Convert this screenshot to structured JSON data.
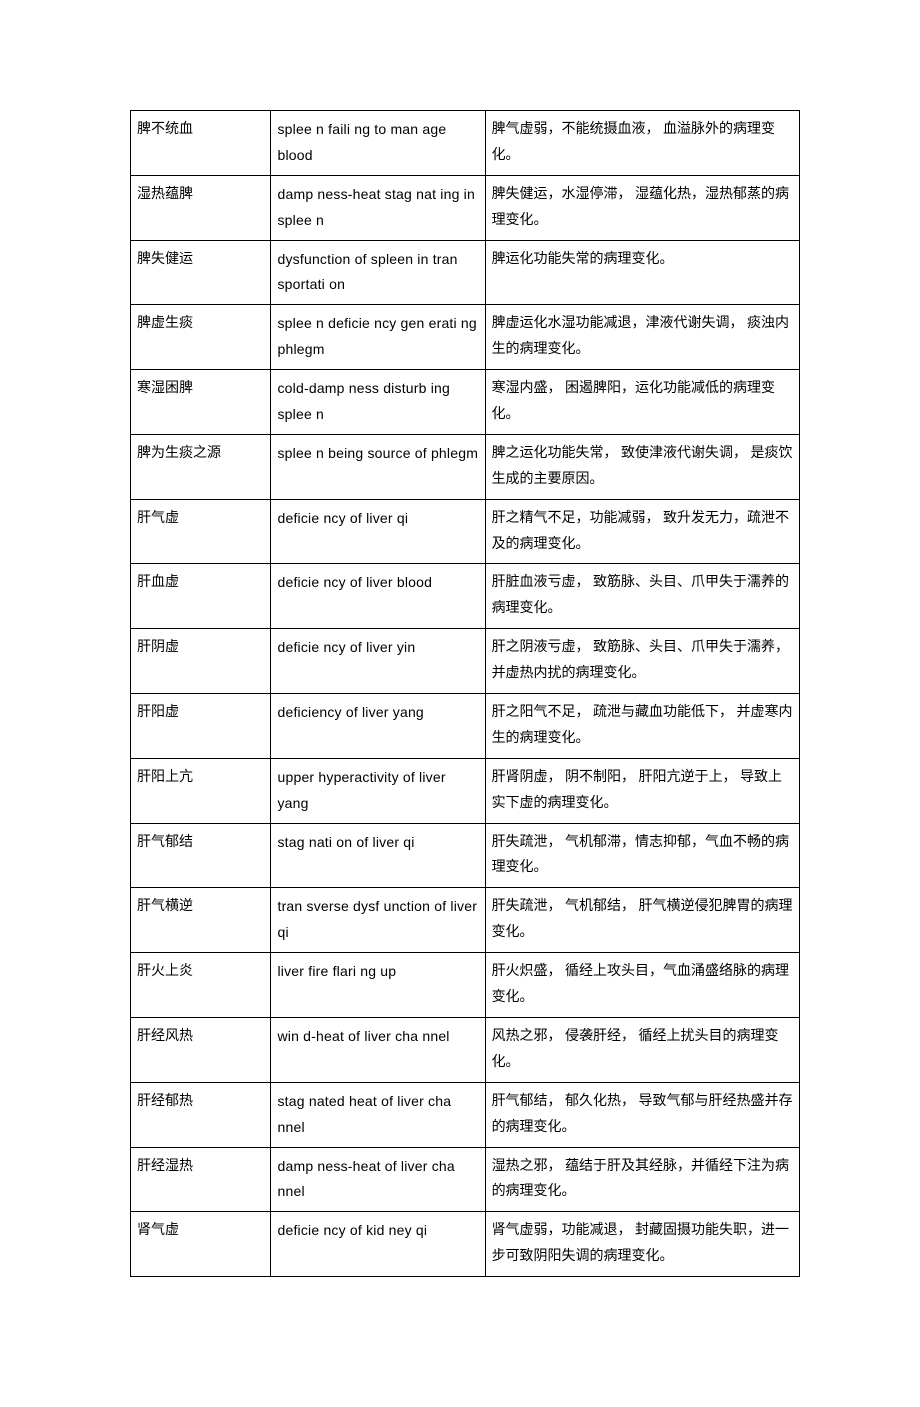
{
  "table": {
    "columns": [
      "term_cn",
      "term_en",
      "definition_cn"
    ],
    "col_widths_pct": [
      21,
      32,
      47
    ],
    "border_color": "#000000",
    "background_color": "#ffffff",
    "text_color": "#000000",
    "font_size_pt": 10.5,
    "line_height": 1.85,
    "rows": [
      {
        "term_cn": "脾不统血",
        "term_en": "splee n faili ng to man age blood",
        "definition_cn": "脾气虚弱，不能统摄血液， 血溢脉外的病理变化。"
      },
      {
        "term_cn": "湿热蕴脾",
        "term_en": "damp ness-heat stag nat ing in splee n",
        "definition_cn": "脾失健运，水湿停滞， 湿蕴化热，湿热郁蒸的病理变化。"
      },
      {
        "term_cn": "脾失健运",
        "term_en": "dysfunction of spleen in tran sportati on",
        "definition_cn": "脾运化功能失常的病理变化。"
      },
      {
        "term_cn": "脾虚生痰",
        "term_en": "splee n deficie ncy gen erati ng phlegm",
        "definition_cn": "脾虚运化水湿功能减退，津液代谢失调，   痰浊内生的病理变化。"
      },
      {
        "term_cn": "寒湿困脾",
        "term_en": "cold-damp ness disturb ing splee n",
        "definition_cn": "寒湿内盛， 困遏脾阳，运化功能减低的病理变化。"
      },
      {
        "term_cn": "脾为生痰之源",
        "term_en": "splee n being source of phlegm",
        "definition_cn": "脾之运化功能失常， 致使津液代谢失调，   是痰饮生成的主要原因。"
      },
      {
        "term_cn": "肝气虚",
        "term_en": "deficie ncy of liver qi",
        "definition_cn": "肝之精气不足，功能减弱， 致升发无力，疏泄不及的病理变化。"
      },
      {
        "term_cn": "肝血虚",
        "term_en": "deficie ncy of liver blood",
        "definition_cn": "肝脏血液亏虚， 致筋脉、头目、爪甲失于濡养的病理变化。"
      },
      {
        "term_cn": "肝阴虚",
        "term_en": "deficie ncy of liver yin",
        "definition_cn": "肝之阴液亏虚， 致筋脉、头目、爪甲失于濡养，并虚热内扰的病理变化。"
      },
      {
        "term_cn": "肝阳虚",
        "term_en": "deficiency of liver yang",
        "definition_cn": "肝之阳气不足， 疏泄与藏血功能低下，   并虚寒内生的病理变化。"
      },
      {
        "term_cn": "肝阳上亢",
        "term_en": "upper hyperactivity of liver yang",
        "definition_cn": "肝肾阴虚， 阴不制阳， 肝阳亢逆于上， 导致上实下虚的病理变化。"
      },
      {
        "term_cn": "肝气郁结",
        "term_en": "stag nati on of liver qi",
        "definition_cn": "肝失疏泄， 气机郁滞，情志抑郁，气血不畅的病理变化。"
      },
      {
        "term_cn": "肝气横逆",
        "term_en": "tran sverse dysf unction of liver qi",
        "definition_cn": "肝失疏泄， 气机郁结， 肝气横逆侵犯脾胃的病理变化。"
      },
      {
        "term_cn": "肝火上炎",
        "term_en": "liver fire flari ng up",
        "definition_cn": "肝火炽盛， 循经上攻头目，气血涌盛络脉的病理变化。"
      },
      {
        "term_cn": "肝经风热",
        "term_en": "win d-heat of liver cha nnel",
        "definition_cn": "风热之邪， 侵袭肝经， 循经上扰头目的病理变化。"
      },
      {
        "term_cn": "肝经郁热",
        "term_en": "stag nated heat of liver cha nnel",
        "definition_cn": "肝气郁结， 郁久化热， 导致气郁与肝经热盛并存的病理变化。"
      },
      {
        "term_cn": "肝经湿热",
        "term_en": "damp ness-heat of liver cha nnel",
        "definition_cn": "湿热之邪， 蕴结于肝及其经脉，并循经下注为病的病理变化。"
      },
      {
        "term_cn": "肾气虚",
        "term_en": "deficie ncy of kid ney qi",
        "definition_cn": "肾气虚弱，功能减退， 封藏固摄功能失职，进一步可致阴阳失调的病理变化。"
      }
    ]
  }
}
